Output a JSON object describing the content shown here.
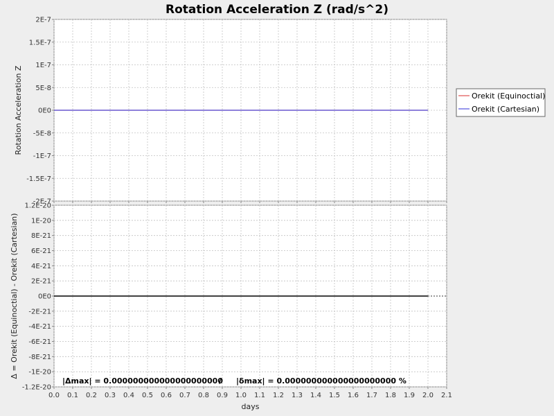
{
  "chart_data": [
    {
      "type": "line",
      "title": "Rotation Acceleration Z (rad/s^2)",
      "xlabel": "",
      "ylabel": "Rotation Acceleration Z",
      "xlim": [
        0.0,
        2.1
      ],
      "ylim": [
        -2e-07,
        2e-07
      ],
      "grid": true,
      "legend_position": "right",
      "x_ticks": [
        "0.0",
        "0.1",
        "0.2",
        "0.3",
        "0.4",
        "0.5",
        "0.6",
        "0.7",
        "0.8",
        "0.9",
        "1.0",
        "1.1",
        "1.2",
        "1.3",
        "1.4",
        "1.5",
        "1.6",
        "1.7",
        "1.8",
        "1.9",
        "2.0",
        "2.1"
      ],
      "y_ticks": [
        {
          "value": 2e-07,
          "label": "2E-7"
        },
        {
          "value": 1.5e-07,
          "label": "1.5E-7"
        },
        {
          "value": 1e-07,
          "label": "1E-7"
        },
        {
          "value": 5e-08,
          "label": "5E-8"
        },
        {
          "value": 0,
          "label": "0E0"
        },
        {
          "value": -5e-08,
          "label": "-5E-8"
        },
        {
          "value": -1e-07,
          "label": "-1E-7"
        },
        {
          "value": -1.5e-07,
          "label": "-1.5E-7"
        },
        {
          "value": -2e-07,
          "label": "-2E-7"
        }
      ],
      "series": [
        {
          "name": "Orekit (Equinoctial)",
          "color": "#e05050",
          "x": [
            0.0,
            2.0
          ],
          "y": [
            0,
            0
          ]
        },
        {
          "name": "Orekit (Cartesian)",
          "color": "#5050e0",
          "x": [
            0.0,
            2.0
          ],
          "y": [
            0,
            0
          ]
        }
      ]
    },
    {
      "type": "line",
      "title": "",
      "xlabel": "days",
      "ylabel": "Δ = Orekit (Equinoctial) - Orekit (Cartesian)",
      "xlim": [
        0.0,
        2.1
      ],
      "ylim": [
        -1.2e-20,
        1.2e-20
      ],
      "grid": true,
      "x_ticks": [
        "0.0",
        "0.1",
        "0.2",
        "0.3",
        "0.4",
        "0.5",
        "0.6",
        "0.7",
        "0.8",
        "0.9",
        "1.0",
        "1.1",
        "1.2",
        "1.3",
        "1.4",
        "1.5",
        "1.6",
        "1.7",
        "1.8",
        "1.9",
        "2.0",
        "2.1"
      ],
      "y_ticks": [
        {
          "value": 1.2e-20,
          "label": "1.2E-20"
        },
        {
          "value": 1e-20,
          "label": "1E-20"
        },
        {
          "value": 8e-21,
          "label": "8E-21"
        },
        {
          "value": 6e-21,
          "label": "6E-21"
        },
        {
          "value": 4e-21,
          "label": "4E-21"
        },
        {
          "value": 2e-21,
          "label": "2E-21"
        },
        {
          "value": 0,
          "label": "0E0"
        },
        {
          "value": -2e-21,
          "label": "-2E-21"
        },
        {
          "value": -4e-21,
          "label": "-4E-21"
        },
        {
          "value": -6e-21,
          "label": "-6E-21"
        },
        {
          "value": -8e-21,
          "label": "-8E-21"
        },
        {
          "value": -1e-20,
          "label": "-1E-20"
        },
        {
          "value": -1.2e-20,
          "label": "-1.2E-20"
        }
      ],
      "series": [
        {
          "name": "",
          "color": "#000000",
          "x": [
            0.0,
            2.0
          ],
          "y": [
            0,
            0
          ]
        }
      ],
      "annotations": {
        "delta_max": "|Δmax| = 0.000000000000000000000",
        "separator": "/",
        "delta_rel_max": "|δmax| = 0.000000000000000000000 %"
      }
    }
  ]
}
